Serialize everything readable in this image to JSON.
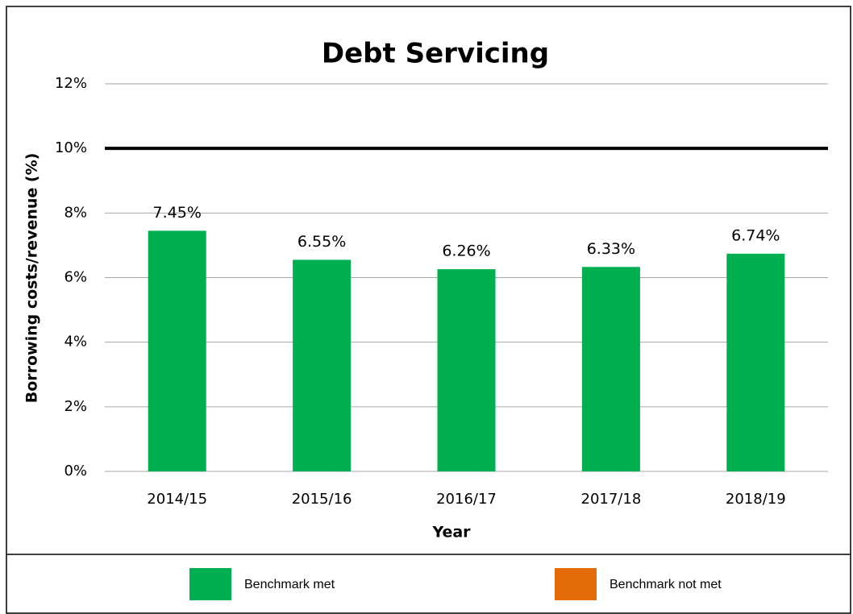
{
  "chart_data": {
    "type": "bar",
    "title": "Debt Servicing",
    "x_label": "Year",
    "y_label": "Borrowing costs/revenue (%)",
    "categories": [
      "2014/15",
      "2015/16",
      "2016/17",
      "2017/18",
      "2018/19"
    ],
    "values": [
      7.45,
      6.55,
      6.26,
      6.33,
      6.74
    ],
    "value_labels": [
      "7.45%",
      "6.55%",
      "6.26%",
      "6.33%",
      "6.74%"
    ],
    "color": "#00b050",
    "ylim": [
      0,
      12
    ],
    "yticks": [
      {
        "value": 0,
        "label": "0%"
      },
      {
        "value": 2,
        "label": "2%"
      },
      {
        "value": 4,
        "label": "4%"
      },
      {
        "value": 6,
        "label": "6%"
      },
      {
        "value": 8,
        "label": "8%"
      },
      {
        "value": 10,
        "label": "10%"
      },
      {
        "value": 12,
        "label": "12%"
      }
    ],
    "grid": true,
    "reference_line": {
      "value": 10,
      "color": "#000000"
    },
    "legend": [
      {
        "name": "Benchmark met",
        "color": "#00b050"
      },
      {
        "name": "Benchmark not met",
        "color": "#e36c09"
      }
    ]
  }
}
